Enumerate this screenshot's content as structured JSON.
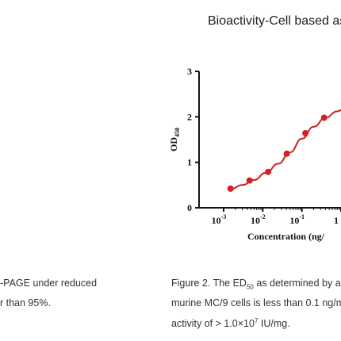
{
  "header": {
    "title": "Bioactivity-Cell based as"
  },
  "left_caption": {
    "line1": "-PAGE under reduced",
    "line2": "r than 95%."
  },
  "right_caption": {
    "line1_prefix": "Figure 2. The ED",
    "line1_sub": "50",
    "line1_suffix": " as determined by a c",
    "line2": "murine MC/9 cells is less than 0.1 ng/m",
    "line3_prefix": "activity of > 1.0×10",
    "line3_sup": "7",
    "line3_suffix": " IU/mg."
  },
  "chart_data": {
    "type": "scatter",
    "ylabel": "OD",
    "ylabel_sub": "450",
    "xlabel": "Concentration (ng/",
    "yticks": [
      "0",
      "1",
      "2",
      "3"
    ],
    "ylim": [
      0,
      3
    ],
    "xticks": [
      {
        "base": "10",
        "exp": "-3"
      },
      {
        "base": "10",
        "exp": "-2"
      },
      {
        "base": "10",
        "exp": "-1"
      },
      {
        "base": "1",
        "exp": ""
      }
    ],
    "xscale": "log",
    "xlim_log10": [
      -3,
      0
    ],
    "series": [
      {
        "color": "#d42020",
        "points": [
          {
            "x": 0.0015,
            "y": 0.42
          },
          {
            "x": 0.0046,
            "y": 0.6
          },
          {
            "x": 0.0137,
            "y": 0.79
          },
          {
            "x": 0.041,
            "y": 1.19
          },
          {
            "x": 0.123,
            "y": 1.64
          },
          {
            "x": 0.37,
            "y": 1.98
          }
        ],
        "curve": [
          {
            "x": 0.0015,
            "y": 0.41
          },
          {
            "x": 0.003,
            "y": 0.5
          },
          {
            "x": 0.006,
            "y": 0.61
          },
          {
            "x": 0.012,
            "y": 0.77
          },
          {
            "x": 0.025,
            "y": 0.97
          },
          {
            "x": 0.05,
            "y": 1.22
          },
          {
            "x": 0.1,
            "y": 1.52
          },
          {
            "x": 0.2,
            "y": 1.78
          },
          {
            "x": 0.4,
            "y": 1.98
          },
          {
            "x": 0.8,
            "y": 2.12
          },
          {
            "x": 1.2,
            "y": 2.18
          }
        ]
      }
    ]
  }
}
